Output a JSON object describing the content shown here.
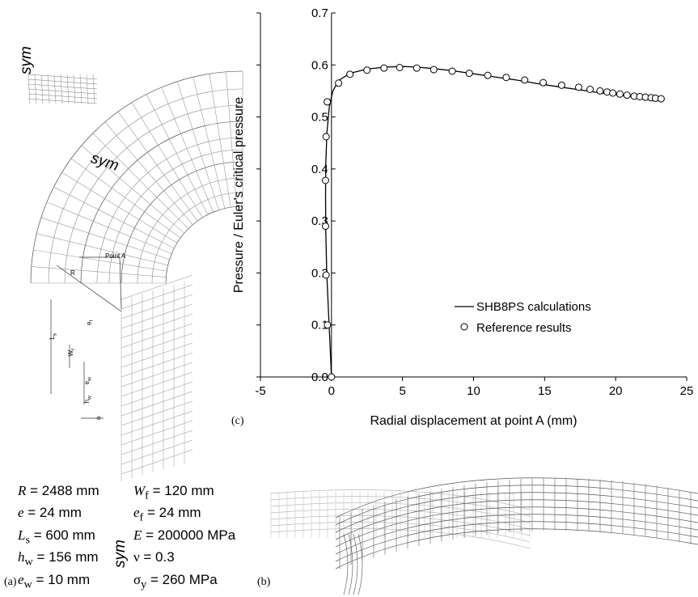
{
  "panel_a": {
    "sym_top": "sym",
    "sym_mid": "sym",
    "sym_bottom": "sym",
    "dim_R": "R",
    "point_label": "Point A",
    "dim_Ls": "L",
    "dim_Ls_sub": "s",
    "dim_Wf": "W",
    "dim_Wf_sub": "f",
    "dim_ef": "e",
    "dim_ef_sub": "f",
    "dim_ew": "e",
    "dim_ew_sub": "w",
    "dim_hw": "h",
    "dim_hw_sub": "w",
    "dim_e": "e",
    "label": "(a)"
  },
  "parameters_left": [
    {
      "sym": "R",
      "sub": "",
      "val": " = 2488 mm"
    },
    {
      "sym": "e",
      "sub": "",
      "val": " = 24 mm"
    },
    {
      "sym": "L",
      "sub": "s",
      "val": " = 600 mm"
    },
    {
      "sym": "h",
      "sub": "w",
      "val": " = 156 mm"
    },
    {
      "sym": "e",
      "sub": "w",
      "val": " = 10 mm"
    }
  ],
  "parameters_right": [
    {
      "sym": "W",
      "sub": "f",
      "val": " = 120 mm"
    },
    {
      "sym": "e",
      "sub": "f",
      "val": " = 24 mm"
    },
    {
      "sym": "E",
      "sub": "",
      "val": " = 200000 MPa"
    },
    {
      "sym": "ν",
      "sub": "",
      "val": " = 0.3"
    },
    {
      "sym": "σ",
      "sub": "y",
      "val": " = 260 MPa"
    }
  ],
  "panel_b": {
    "label": "(b)"
  },
  "panel_c": {
    "label": "(c)"
  },
  "chart_data": {
    "type": "line",
    "xlabel": "Radial displacement at point A (mm)",
    "ylabel": "Pressure / Euler's critical pressure",
    "xlim": [
      -5,
      25
    ],
    "ylim": [
      0.0,
      0.7
    ],
    "xticks": [
      -5,
      0,
      5,
      10,
      15,
      20,
      25
    ],
    "yticks": [
      "0.0",
      "0.1",
      "0.2",
      "0.3",
      "0.4",
      "0.5",
      "0.6",
      "0.7"
    ],
    "legend_position": "lower-right",
    "series": [
      {
        "name": "SHB8PS calculations",
        "style": "line",
        "x": [
          0.0,
          -0.08,
          -0.2,
          -0.33,
          -0.4,
          -0.42,
          -0.4,
          -0.32,
          -0.15,
          0.1,
          0.5,
          1.3,
          2.5,
          3.8,
          5.0,
          6.0,
          7.2,
          8.5,
          10.0,
          11.5,
          13.0,
          14.5,
          16.0,
          17.5,
          19.0,
          20.5,
          22.0,
          23.2
        ],
        "y": [
          0.0,
          0.05,
          0.12,
          0.2,
          0.28,
          0.35,
          0.41,
          0.47,
          0.52,
          0.55,
          0.57,
          0.584,
          0.592,
          0.596,
          0.597,
          0.596,
          0.593,
          0.589,
          0.583,
          0.577,
          0.571,
          0.564,
          0.558,
          0.552,
          0.546,
          0.541,
          0.537,
          0.535
        ]
      },
      {
        "name": "Reference results",
        "style": "markers",
        "x": [
          0.0,
          -0.28,
          -0.38,
          -0.42,
          -0.42,
          -0.38,
          -0.3,
          0.5,
          1.3,
          2.5,
          3.7,
          4.8,
          6.0,
          7.2,
          8.5,
          9.7,
          11.0,
          12.3,
          13.6,
          14.9,
          16.2,
          17.4,
          18.2,
          18.9,
          19.4,
          19.8,
          20.3,
          20.8,
          21.3,
          21.7,
          22.1,
          22.5,
          22.8,
          23.2
        ],
        "y": [
          0.0,
          0.1,
          0.196,
          0.29,
          0.378,
          0.462,
          0.529,
          0.565,
          0.582,
          0.59,
          0.594,
          0.595,
          0.594,
          0.591,
          0.588,
          0.584,
          0.58,
          0.576,
          0.571,
          0.566,
          0.561,
          0.557,
          0.553,
          0.55,
          0.548,
          0.546,
          0.544,
          0.542,
          0.54,
          0.539,
          0.538,
          0.537,
          0.536,
          0.535
        ]
      }
    ]
  }
}
